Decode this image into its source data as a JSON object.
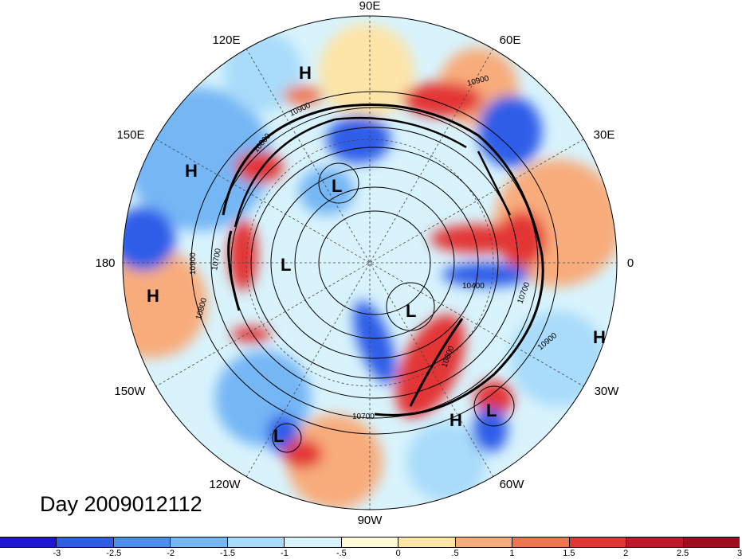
{
  "title": "Day 2009012112",
  "longitude_labels": [
    {
      "text": "90E",
      "key": "90e"
    },
    {
      "text": "60E",
      "key": "60e"
    },
    {
      "text": "30E",
      "key": "30e"
    },
    {
      "text": "0",
      "key": "0"
    },
    {
      "text": "30W",
      "key": "30w"
    },
    {
      "text": "60W",
      "key": "60w"
    },
    {
      "text": "90W",
      "key": "90w"
    },
    {
      "text": "120W",
      "key": "120w"
    },
    {
      "text": "150W",
      "key": "150w"
    },
    {
      "text": "180",
      "key": "180"
    },
    {
      "text": "150E",
      "key": "150e"
    },
    {
      "text": "120E",
      "key": "120e"
    }
  ],
  "pressure_centers": [
    {
      "text": "H",
      "key": "h-120e"
    },
    {
      "text": "H",
      "key": "h-150e"
    },
    {
      "text": "L",
      "key": "l-eurasia"
    },
    {
      "text": "L",
      "key": "l-pacific"
    },
    {
      "text": "H",
      "key": "h-180"
    },
    {
      "text": "L",
      "key": "l-canada"
    },
    {
      "text": "L",
      "key": "l-atlantic"
    },
    {
      "text": "H",
      "key": "h-30w"
    },
    {
      "text": "H",
      "key": "h-60w"
    },
    {
      "text": "L",
      "key": "l-120w"
    }
  ],
  "contour_labels": [
    {
      "text": "10900",
      "key": "c1"
    },
    {
      "text": "10900",
      "key": "c2"
    },
    {
      "text": "10800",
      "key": "c3"
    },
    {
      "text": "10900",
      "key": "c4"
    },
    {
      "text": "10700",
      "key": "c5"
    },
    {
      "text": "10800",
      "key": "c6"
    },
    {
      "text": "10400",
      "key": "c7"
    },
    {
      "text": "10700",
      "key": "c8"
    },
    {
      "text": "10900",
      "key": "c9"
    },
    {
      "text": "10800",
      "key": "c10"
    },
    {
      "text": "10700",
      "key": "c11"
    }
  ],
  "colorbar": {
    "colors": [
      "#1d16d6",
      "#2f5de8",
      "#4a8ff0",
      "#75b6f5",
      "#a9dcfa",
      "#d8f3fc",
      "#fffad8",
      "#fde4a7",
      "#f8ac7c",
      "#f1744f",
      "#e33634",
      "#c2172a",
      "#a10d1f"
    ],
    "ticks": [
      "-3",
      "-2.5",
      "-2",
      "-1.5",
      "-1",
      "-.5",
      "0",
      ".5",
      "1",
      "1.5",
      "2",
      "2.5",
      "3"
    ]
  }
}
